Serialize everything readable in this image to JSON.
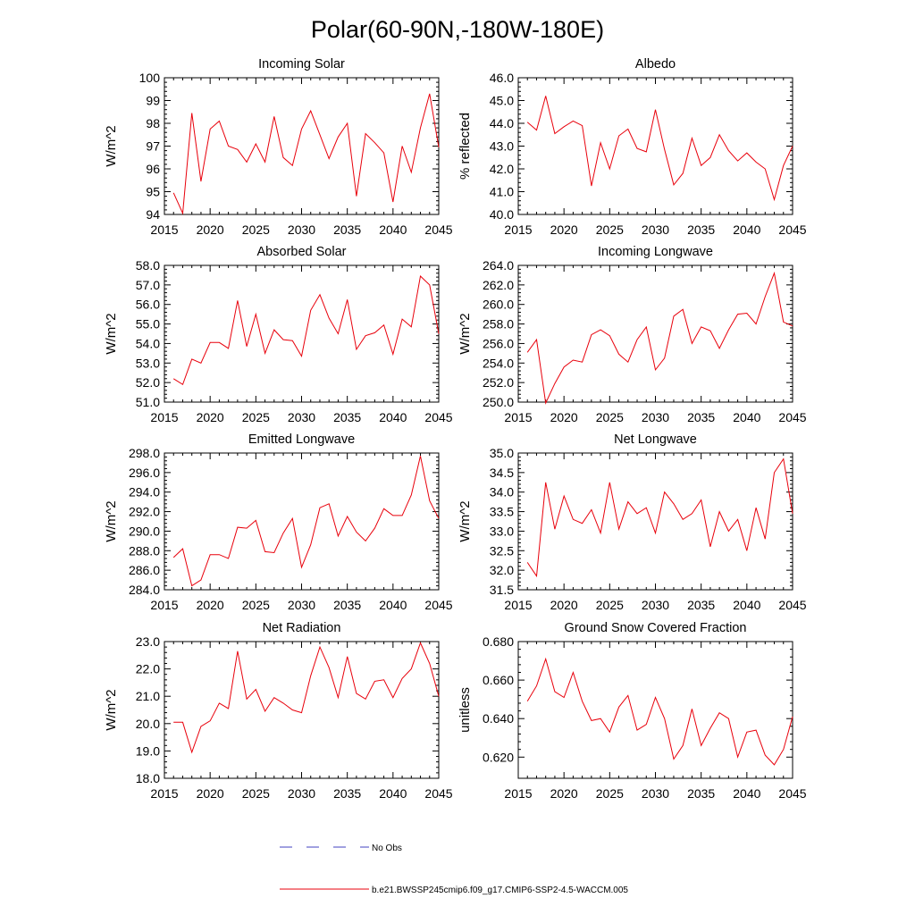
{
  "figure_title": "Polar(60-90N,-180W-180E)",
  "legend": {
    "obs_label": "No Obs",
    "obs_color": "#4040c0",
    "model_label": "b.e21.BWSSP245cmip6.f09_g17.CMIP6-SSP2-4.5-WACCM.005",
    "model_color": "#e8000b"
  },
  "chart_data": [
    {
      "type": "line",
      "title": "Incoming Solar",
      "xlabel": "",
      "ylabel": "W/m^2",
      "xlim": [
        2015,
        2045
      ],
      "ylim": [
        94,
        100
      ],
      "xticks": [
        2015,
        2020,
        2025,
        2030,
        2035,
        2040,
        2045
      ],
      "yticks": [
        94,
        95,
        96,
        97,
        98,
        99,
        100
      ],
      "yticklabels": [
        "94",
        "95",
        "96",
        "97",
        "98",
        "99",
        "100"
      ],
      "series": [
        {
          "name": "b.e21.BWSSP245cmip6.f09_g17.CMIP6-SSP2-4.5-WACCM.005",
          "x": [
            2016,
            2017,
            2018,
            2019,
            2020,
            2021,
            2022,
            2023,
            2024,
            2025,
            2026,
            2027,
            2028,
            2029,
            2030,
            2031,
            2032,
            2033,
            2034,
            2035,
            2036,
            2037,
            2038,
            2039,
            2040,
            2041,
            2042,
            2043,
            2044,
            2045
          ],
          "values": [
            94.95,
            94.05,
            98.45,
            95.45,
            97.75,
            98.1,
            97.0,
            96.85,
            96.3,
            97.1,
            96.3,
            98.3,
            96.5,
            96.15,
            97.75,
            98.55,
            97.5,
            96.45,
            97.4,
            98.0,
            94.8,
            97.55,
            97.15,
            96.7,
            94.55,
            97.0,
            95.85,
            97.8,
            99.3,
            96.95
          ]
        }
      ]
    },
    {
      "type": "line",
      "title": "Albedo",
      "xlabel": "",
      "ylabel": "% reflected",
      "xlim": [
        2015,
        2045
      ],
      "ylim": [
        40,
        46
      ],
      "xticks": [
        2015,
        2020,
        2025,
        2030,
        2035,
        2040,
        2045
      ],
      "yticks": [
        40,
        41,
        42,
        43,
        44,
        45,
        46
      ],
      "yticklabels": [
        "40.0",
        "41.0",
        "42.0",
        "43.0",
        "44.0",
        "45.0",
        "46.0"
      ],
      "series": [
        {
          "name": "b.e21.BWSSP245cmip6.f09_g17.CMIP6-SSP2-4.5-WACCM.005",
          "x": [
            2016,
            2017,
            2018,
            2019,
            2020,
            2021,
            2022,
            2023,
            2024,
            2025,
            2026,
            2027,
            2028,
            2029,
            2030,
            2031,
            2032,
            2033,
            2034,
            2035,
            2036,
            2037,
            2038,
            2039,
            2040,
            2041,
            2042,
            2043,
            2044,
            2045
          ],
          "values": [
            44.05,
            43.7,
            45.2,
            43.55,
            43.85,
            44.1,
            43.9,
            41.25,
            43.15,
            42.0,
            43.45,
            43.75,
            42.9,
            42.75,
            44.6,
            42.85,
            41.3,
            41.8,
            43.35,
            42.15,
            42.5,
            43.5,
            42.8,
            42.35,
            42.7,
            42.3,
            42.0,
            40.65,
            42.15,
            43.0
          ]
        }
      ]
    },
    {
      "type": "line",
      "title": "Absorbed Solar",
      "xlabel": "",
      "ylabel": "W/m^2",
      "xlim": [
        2015,
        2045
      ],
      "ylim": [
        51,
        58
      ],
      "xticks": [
        2015,
        2020,
        2025,
        2030,
        2035,
        2040,
        2045
      ],
      "yticks": [
        51,
        52,
        53,
        54,
        55,
        56,
        57,
        58
      ],
      "yticklabels": [
        "51.0",
        "52.0",
        "53.0",
        "54.0",
        "55.0",
        "56.0",
        "57.0",
        "58.0"
      ],
      "series": [
        {
          "name": "b.e21.BWSSP245cmip6.f09_g17.CMIP6-SSP2-4.5-WACCM.005",
          "x": [
            2016,
            2017,
            2018,
            2019,
            2020,
            2021,
            2022,
            2023,
            2024,
            2025,
            2026,
            2027,
            2028,
            2029,
            2030,
            2031,
            2032,
            2033,
            2034,
            2035,
            2036,
            2037,
            2038,
            2039,
            2040,
            2041,
            2042,
            2043,
            2044,
            2045
          ],
          "values": [
            52.2,
            51.9,
            53.2,
            53.0,
            54.05,
            54.05,
            53.75,
            56.2,
            53.85,
            55.5,
            53.5,
            54.7,
            54.2,
            54.15,
            53.35,
            55.7,
            56.5,
            55.3,
            54.5,
            56.25,
            53.7,
            54.4,
            54.55,
            54.95,
            53.45,
            55.25,
            54.85,
            57.45,
            57.0,
            54.5
          ]
        }
      ]
    },
    {
      "type": "line",
      "title": "Incoming Longwave",
      "xlabel": "",
      "ylabel": "W/m^2",
      "xlim": [
        2015,
        2045
      ],
      "ylim": [
        250,
        264
      ],
      "xticks": [
        2015,
        2020,
        2025,
        2030,
        2035,
        2040,
        2045
      ],
      "yticks": [
        250,
        252,
        254,
        256,
        258,
        260,
        262,
        264
      ],
      "yticklabels": [
        "250.0",
        "252.0",
        "254.0",
        "256.0",
        "258.0",
        "260.0",
        "262.0",
        "264.0"
      ],
      "series": [
        {
          "name": "b.e21.BWSSP245cmip6.f09_g17.CMIP6-SSP2-4.5-WACCM.005",
          "x": [
            2016,
            2017,
            2018,
            2019,
            2020,
            2021,
            2022,
            2023,
            2024,
            2025,
            2026,
            2027,
            2028,
            2029,
            2030,
            2031,
            2032,
            2033,
            2034,
            2035,
            2036,
            2037,
            2038,
            2039,
            2040,
            2041,
            2042,
            2043,
            2044,
            2045
          ],
          "values": [
            255.1,
            256.4,
            249.9,
            251.9,
            253.6,
            254.3,
            254.1,
            256.9,
            257.4,
            256.8,
            254.9,
            254.1,
            256.4,
            257.7,
            253.3,
            254.5,
            258.8,
            259.5,
            256.0,
            257.7,
            257.3,
            255.5,
            257.4,
            259.0,
            259.1,
            258.0,
            260.8,
            263.2,
            258.2,
            257.8
          ]
        }
      ]
    },
    {
      "type": "line",
      "title": "Emitted Longwave",
      "xlabel": "",
      "ylabel": "W/m^2",
      "xlim": [
        2015,
        2045
      ],
      "ylim": [
        284,
        298
      ],
      "xticks": [
        2015,
        2020,
        2025,
        2030,
        2035,
        2040,
        2045
      ],
      "yticks": [
        284,
        286,
        288,
        290,
        292,
        294,
        296,
        298
      ],
      "yticklabels": [
        "284.0",
        "286.0",
        "288.0",
        "290.0",
        "292.0",
        "294.0",
        "296.0",
        "298.0"
      ],
      "series": [
        {
          "name": "b.e21.BWSSP245cmip6.f09_g17.CMIP6-SSP2-4.5-WACCM.005",
          "x": [
            2016,
            2017,
            2018,
            2019,
            2020,
            2021,
            2022,
            2023,
            2024,
            2025,
            2026,
            2027,
            2028,
            2029,
            2030,
            2031,
            2032,
            2033,
            2034,
            2035,
            2036,
            2037,
            2038,
            2039,
            2040,
            2041,
            2042,
            2043,
            2044,
            2045
          ],
          "values": [
            287.3,
            288.2,
            284.4,
            285.0,
            287.6,
            287.6,
            287.2,
            290.4,
            290.3,
            291.1,
            287.9,
            287.8,
            289.8,
            291.3,
            286.3,
            288.6,
            292.4,
            292.8,
            289.5,
            291.5,
            289.9,
            289.0,
            290.3,
            292.3,
            291.6,
            291.6,
            293.7,
            297.7,
            293.1,
            291.3
          ]
        }
      ]
    },
    {
      "type": "line",
      "title": "Net Longwave",
      "xlabel": "",
      "ylabel": "W/m^2",
      "xlim": [
        2015,
        2045
      ],
      "ylim": [
        31.5,
        35
      ],
      "xticks": [
        2015,
        2020,
        2025,
        2030,
        2035,
        2040,
        2045
      ],
      "yticks": [
        31.5,
        32,
        32.5,
        33,
        33.5,
        34,
        34.5,
        35
      ],
      "yticklabels": [
        "31.5",
        "32.0",
        "32.5",
        "33.0",
        "33.5",
        "34.0",
        "34.5",
        "35.0"
      ],
      "series": [
        {
          "name": "b.e21.BWSSP245cmip6.f09_g17.CMIP6-SSP2-4.5-WACCM.005",
          "x": [
            2016,
            2017,
            2018,
            2019,
            2020,
            2021,
            2022,
            2023,
            2024,
            2025,
            2026,
            2027,
            2028,
            2029,
            2030,
            2031,
            2032,
            2033,
            2034,
            2035,
            2036,
            2037,
            2038,
            2039,
            2040,
            2041,
            2042,
            2043,
            2044,
            2045
          ],
          "values": [
            32.2,
            31.85,
            34.25,
            33.05,
            33.9,
            33.3,
            33.2,
            33.55,
            32.95,
            34.25,
            33.05,
            33.75,
            33.45,
            33.6,
            32.95,
            34.0,
            33.7,
            33.3,
            33.45,
            33.8,
            32.6,
            33.5,
            33.0,
            33.3,
            32.5,
            33.6,
            32.8,
            34.5,
            34.85,
            33.45
          ]
        }
      ]
    },
    {
      "type": "line",
      "title": "Net Radiation",
      "xlabel": "",
      "ylabel": "W/m^2",
      "xlim": [
        2015,
        2045
      ],
      "ylim": [
        18,
        23
      ],
      "xticks": [
        2015,
        2020,
        2025,
        2030,
        2035,
        2040,
        2045
      ],
      "yticks": [
        18,
        19,
        20,
        21,
        22,
        23
      ],
      "yticklabels": [
        "18.0",
        "19.0",
        "20.0",
        "21.0",
        "22.0",
        "23.0"
      ],
      "series": [
        {
          "name": "b.e21.BWSSP245cmip6.f09_g17.CMIP6-SSP2-4.5-WACCM.005",
          "x": [
            2016,
            2017,
            2018,
            2019,
            2020,
            2021,
            2022,
            2023,
            2024,
            2025,
            2026,
            2027,
            2028,
            2029,
            2030,
            2031,
            2032,
            2033,
            2034,
            2035,
            2036,
            2037,
            2038,
            2039,
            2040,
            2041,
            2042,
            2043,
            2044,
            2045
          ],
          "values": [
            20.05,
            20.05,
            18.95,
            19.9,
            20.1,
            20.75,
            20.55,
            22.65,
            20.9,
            21.25,
            20.45,
            20.95,
            20.75,
            20.5,
            20.4,
            21.75,
            22.8,
            22.05,
            20.95,
            22.45,
            21.1,
            20.9,
            21.55,
            21.6,
            20.95,
            21.65,
            22.0,
            22.95,
            22.2,
            21.0
          ]
        }
      ]
    },
    {
      "type": "line",
      "title": "Ground Snow Covered Fraction",
      "xlabel": "",
      "ylabel": "unitless",
      "xlim": [
        2015,
        2045
      ],
      "ylim": [
        0.609,
        0.68
      ],
      "xticks": [
        2015,
        2020,
        2025,
        2030,
        2035,
        2040,
        2045
      ],
      "yticks": [
        0.62,
        0.64,
        0.66,
        0.68
      ],
      "yticklabels": [
        "0.620",
        "0.640",
        "0.660",
        "0.680"
      ],
      "series": [
        {
          "name": "b.e21.BWSSP245cmip6.f09_g17.CMIP6-SSP2-4.5-WACCM.005",
          "x": [
            2016,
            2017,
            2018,
            2019,
            2020,
            2021,
            2022,
            2023,
            2024,
            2025,
            2026,
            2027,
            2028,
            2029,
            2030,
            2031,
            2032,
            2033,
            2034,
            2035,
            2036,
            2037,
            2038,
            2039,
            2040,
            2041,
            2042,
            2043,
            2044,
            2045
          ],
          "values": [
            0.649,
            0.657,
            0.671,
            0.654,
            0.651,
            0.664,
            0.649,
            0.639,
            0.64,
            0.633,
            0.646,
            0.652,
            0.634,
            0.637,
            0.651,
            0.64,
            0.619,
            0.626,
            0.645,
            0.626,
            0.635,
            0.643,
            0.64,
            0.62,
            0.633,
            0.634,
            0.621,
            0.616,
            0.624,
            0.641
          ]
        }
      ]
    }
  ]
}
